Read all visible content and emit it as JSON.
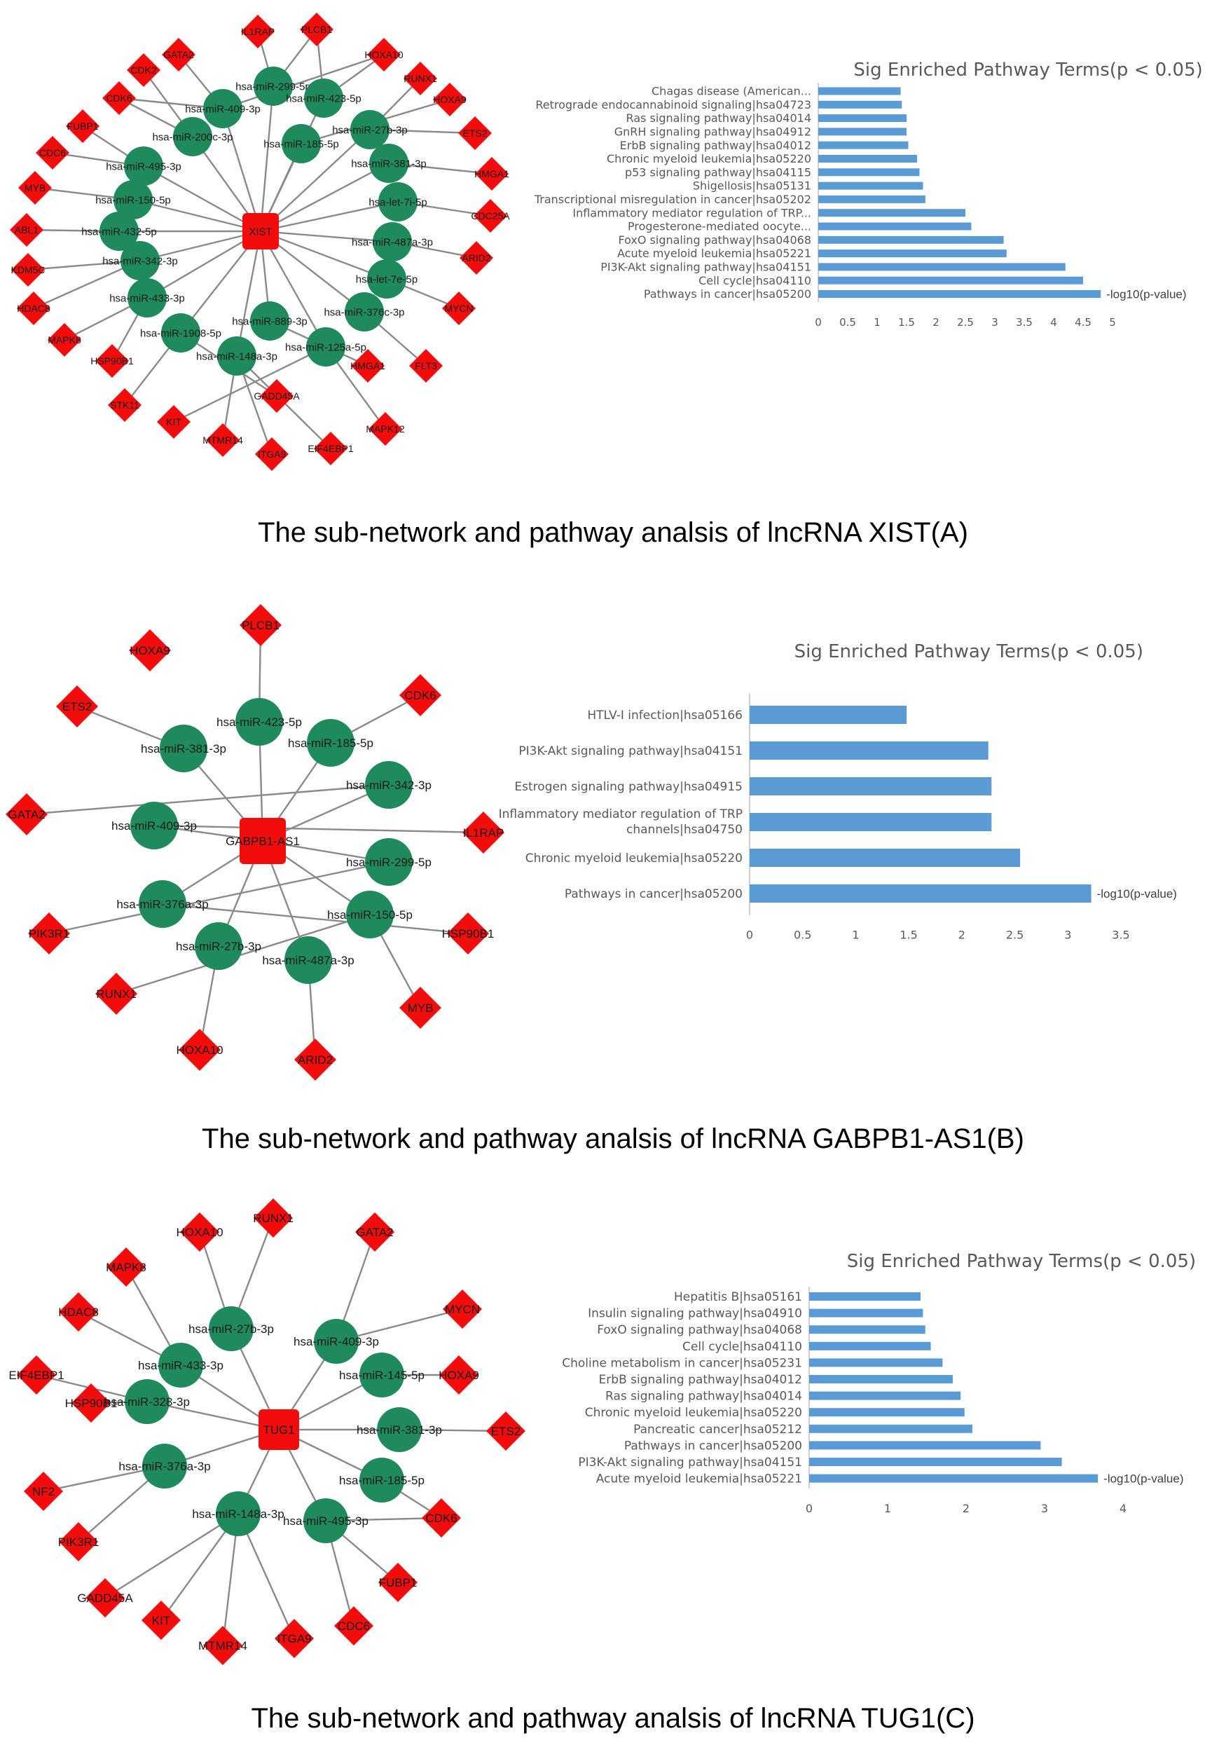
{
  "panels": [
    {
      "caption": "The sub-network and pathway analsis of lncRNA XIST(A)",
      "network": {
        "hub": "XIST",
        "mirnas": [
          "hsa-miR-299-5p",
          "hsa-miR-423-5p",
          "hsa-miR-409-3p",
          "hsa-miR-27b-3p",
          "hsa-miR-200c-3p",
          "hsa-miR-185-5p",
          "hsa-miR-381-3p",
          "hsa-miR-495-3p",
          "hsa-miR-150-5p",
          "hsa-let-7i-5p",
          "hsa-miR-432-5p",
          "hsa-miR-487a-3p",
          "hsa-miR-342-3p",
          "hsa-let-7e-5p",
          "hsa-miR-433-3p",
          "hsa-miR-376c-3p",
          "hsa-miR-889-3p",
          "hsa-miR-1908-5p",
          "hsa-miR-125a-5p",
          "hsa-miR-148a-3p"
        ],
        "genes": [
          "IL1RAP",
          "PLCB1",
          "GATA2",
          "HOXA10",
          "CDK2",
          "RUNX1",
          "CDK6",
          "HOXA9",
          "FUBP1",
          "ETS2",
          "CDC6",
          "HMGA1",
          "MYB",
          "CDC25A",
          "ABL1",
          "ARID2",
          "KDM5C",
          "HDAC8",
          "MYCN",
          "MAPK8",
          "HSP90B1",
          "FLT3",
          "HMGA1",
          "STK11",
          "GADD45A",
          "KIT",
          "MAPK12",
          "MTMR14",
          "ITGA9",
          "EIF4EBP1"
        ]
      },
      "chart_data": {
        "type": "bar",
        "orientation": "horizontal",
        "title": "Sig Enriched Pathway Terms(p < 0.05)",
        "series_label": "-log10(p-value)",
        "xlim": [
          0,
          5
        ],
        "xticks": [
          "0",
          "0.5",
          "1",
          "1.5",
          "2",
          "2.5",
          "3",
          "3.5",
          "4",
          "4.5",
          "5"
        ],
        "categories": [
          "Chagas disease (American...",
          "Retrograde endocannabinoid signaling|hsa04723",
          "Ras signaling pathway|hsa04014",
          "GnRH signaling pathway|hsa04912",
          "ErbB signaling pathway|hsa04012",
          "Chronic myeloid leukemia|hsa05220",
          "p53 signaling pathway|hsa04115",
          "Shigellosis|hsa05131",
          "Transcriptional misregulation in cancer|hsa05202",
          "Inflammatory mediator regulation of TRP...",
          "Progesterone-mediated oocyte...",
          "FoxO signaling pathway|hsa04068",
          "Acute myeloid leukemia|hsa05221",
          "PI3K-Akt signaling pathway|hsa04151",
          "Cell cycle|hsa04110",
          "Pathways in cancer|hsa05200"
        ],
        "values": [
          1.4,
          1.42,
          1.5,
          1.5,
          1.53,
          1.68,
          1.72,
          1.78,
          1.82,
          2.5,
          2.6,
          3.15,
          3.2,
          4.2,
          4.5,
          4.8
        ]
      }
    },
    {
      "caption": "The sub-network and pathway analsis of lncRNA GABPB1-AS1(B)",
      "network": {
        "hub": "GABPB1-AS1",
        "mirnas": [
          "hsa-miR-423-5p",
          "hsa-miR-185-5p",
          "hsa-miR-381-3p",
          "hsa-miR-342-3p",
          "hsa-miR-409-3p",
          "hsa-miR-299-5p",
          "hsa-miR-376a-3p",
          "hsa-miR-150-5p",
          "hsa-miR-27b-3p",
          "hsa-miR-487a-3p"
        ],
        "genes": [
          "PLCB1",
          "HOXA9",
          "CDK6",
          "ETS2",
          "GATA2",
          "IL1RAP",
          "PIK3R1",
          "HSP90B1",
          "RUNX1",
          "MYB",
          "HOXA10",
          "ARID2"
        ]
      },
      "chart_data": {
        "type": "bar",
        "orientation": "horizontal",
        "title": "Sig Enriched Pathway Terms(p < 0.05)",
        "series_label": "-log10(p-value)",
        "xlim": [
          0,
          3.5
        ],
        "xticks": [
          "0",
          "0.5",
          "1",
          "1.5",
          "2",
          "2.5",
          "3",
          "3.5"
        ],
        "categories": [
          "HTLV-I infection|hsa05166",
          "PI3K-Akt signaling pathway|hsa04151",
          "Estrogen signaling pathway|hsa04915",
          "Inflammatory mediator regulation of TRP channels|hsa04750",
          "Chronic myeloid leukemia|hsa05220",
          "Pathways in cancer|hsa05200"
        ],
        "values": [
          1.48,
          2.25,
          2.28,
          2.28,
          2.55,
          3.22
        ]
      }
    },
    {
      "caption": "The sub-network and pathway analsis of lncRNA TUG1(C)",
      "network": {
        "hub": "TUG1",
        "mirnas": [
          "hsa-miR-27b-3p",
          "hsa-miR-409-3p",
          "hsa-miR-433-3p",
          "hsa-miR-145-5p",
          "hsa-miR-328-3p",
          "hsa-miR-381-3p",
          "hsa-miR-376a-3p",
          "hsa-miR-185-5p",
          "hsa-miR-148a-3p",
          "hsa-miR-495-3p"
        ],
        "genes": [
          "HOXA10",
          "RUNX1",
          "GATA2",
          "MAPK8",
          "MYCN",
          "HDAC8",
          "HOXA9",
          "EIF4EBP1",
          "HSP90B1",
          "ETS2",
          "NF2",
          "CDK6",
          "PIK3R1",
          "GADD45A",
          "FUBP1",
          "KIT",
          "MTMR14",
          "ITGA9",
          "CDC6"
        ]
      },
      "chart_data": {
        "type": "bar",
        "orientation": "horizontal",
        "title": "Sig Enriched Pathway Terms(p < 0.05)",
        "series_label": "-log10(p-value)",
        "xlim": [
          0,
          4
        ],
        "xticks": [
          "0",
          "1",
          "2",
          "3",
          "4"
        ],
        "categories": [
          "Hepatitis B|hsa05161",
          "Insulin signaling pathway|hsa04910",
          "FoxO signaling pathway|hsa04068",
          "Cell cycle|hsa04110",
          "Choline metabolism in cancer|hsa05231",
          "ErbB signaling pathway|hsa04012",
          "Ras signaling pathway|hsa04014",
          "Chronic myeloid leukemia|hsa05220",
          "Pancreatic cancer|hsa05212",
          "Pathways in cancer|hsa05200",
          "PI3K-Akt signaling pathway|hsa04151",
          "Acute myeloid leukemia|hsa05221"
        ],
        "values": [
          1.42,
          1.45,
          1.48,
          1.55,
          1.7,
          1.83,
          1.93,
          1.98,
          2.08,
          2.95,
          3.22,
          3.68
        ]
      }
    }
  ]
}
